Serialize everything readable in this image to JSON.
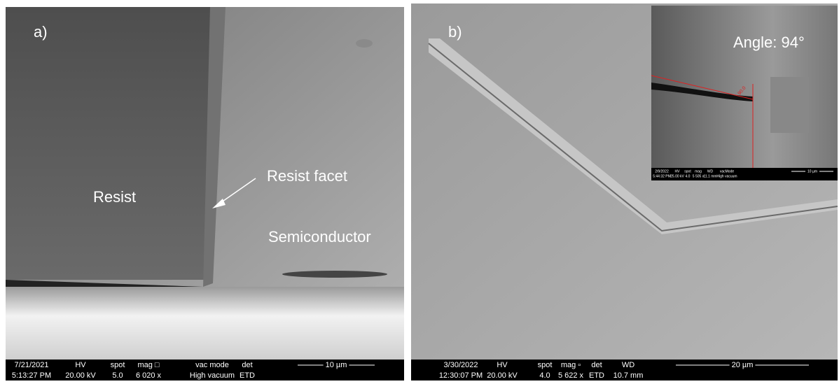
{
  "panels": [
    {
      "label": "a)",
      "annotations": [
        "Resist",
        "Resist facet",
        "Semiconductor"
      ],
      "databar": {
        "header": [
          "7/21/2021",
          "HV",
          "spot",
          "mag □",
          "vac mode",
          "det"
        ],
        "values": [
          "5:13:27 PM",
          "20.00 kV",
          "5.0",
          "6 020 x",
          "High vacuum",
          "ETD"
        ],
        "scale": "10 µm"
      }
    },
    {
      "label": "b)",
      "inset": {
        "label": "Angle: 94°",
        "measure": "90.0",
        "databar": {
          "header": [
            "2/9/2022",
            "HV",
            "spot",
            "mag",
            "WD",
            "vacMode"
          ],
          "values": [
            "5:44:32 PM",
            "25.00 kV",
            "4.0",
            "5 505 x",
            "11.1 mm",
            "High vacuum"
          ],
          "scale": "10 µm"
        }
      },
      "databar": {
        "header": [
          "3/30/2022",
          "HV",
          "spot",
          "mag ▫",
          "det",
          "WD"
        ],
        "values": [
          "12:30:07 PM",
          "20.00 kV",
          "4.0",
          "5 622 x",
          "ETD",
          "10.7 mm"
        ],
        "scale": "20 µm"
      }
    }
  ]
}
